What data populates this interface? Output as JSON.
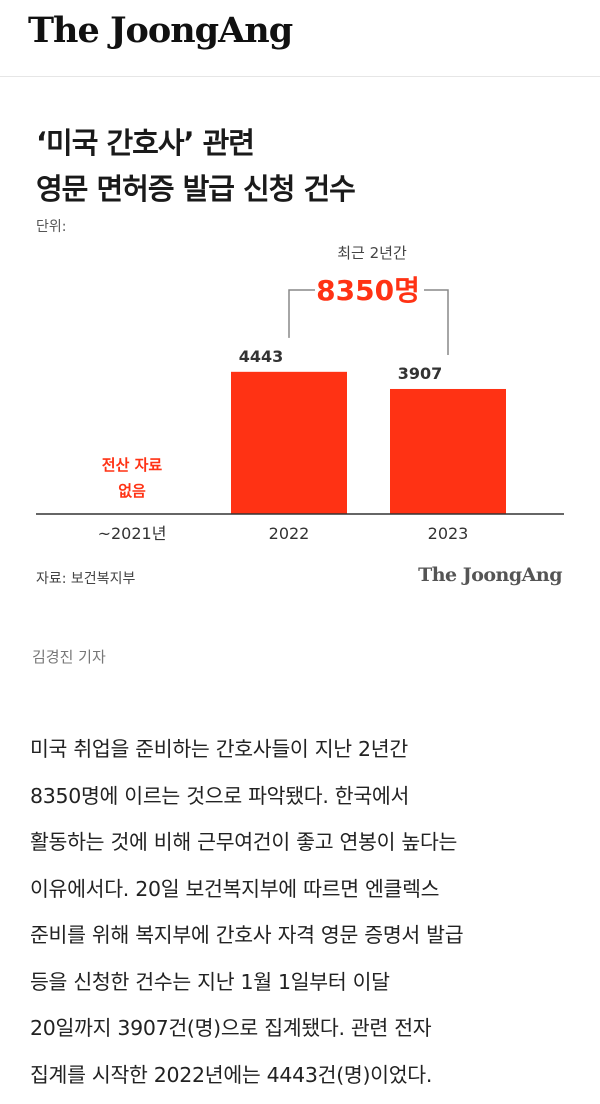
{
  "masthead": {
    "logo": "The JoongAng"
  },
  "chart_data": {
    "type": "bar",
    "title_lines": [
      "‘미국 간호사’ 관련",
      "영문 면허증 발급 신청 건수"
    ],
    "unit_label": "단위:",
    "categories": [
      "~2021년",
      "2022",
      "2023"
    ],
    "values": [
      null,
      4443,
      3907
    ],
    "value_labels": [
      "",
      "4443",
      "3907"
    ],
    "no_data_note": [
      "전산 자료",
      "없음"
    ],
    "annotation": {
      "caption": "최근 2년간",
      "total": "8350명"
    },
    "source": "자료: 보건복지부",
    "watermark": "The JoongAng",
    "bar_color": "#ff3214",
    "ylim": [
      0,
      5000
    ]
  },
  "byline": "김경진 기자",
  "article": {
    "lines": [
      "미국 취업을 준비하는 간호사들이 지난 2년간",
      "8350명에 이르는 것으로 파악됐다. 한국에서",
      "활동하는 것에 비해 근무여건이 좋고 연봉이 높다는",
      "이유에서다. 20일 보건복지부에 따르면 엔클렉스",
      "준비를 위해 복지부에 간호사 자격 영문 증명서 발급",
      "등을 신청한 건수는 지난 1월 1일부터 이달",
      "20일까지 3907건(명)으로 집계됐다. 관련 전자",
      "집계를 시작한 2022년에는 4443건(명)이었다."
    ]
  }
}
